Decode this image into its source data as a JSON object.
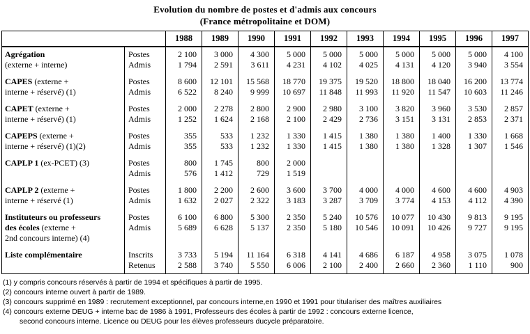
{
  "title": {
    "line1": "Evolution du nombre de postes et d'admis aux concours",
    "line2": "(France métropolitaine et DOM)"
  },
  "table": {
    "years": [
      "1988",
      "1989",
      "1990",
      "1991",
      "1992",
      "1993",
      "1994",
      "1995",
      "1996",
      "1997"
    ],
    "blocks": [
      {
        "label_lines": [
          [
            {
              "b": 1,
              "t": "Agrégation"
            }
          ],
          [
            {
              "b": 0,
              "t": "(externe + interne)"
            }
          ]
        ],
        "rows": [
          {
            "type": "Postes",
            "values": [
              "2 100",
              "3 000",
              "4 300",
              "5 000",
              "5 000",
              "5 000",
              "5 000",
              "5 000",
              "5 000",
              "4 100"
            ]
          },
          {
            "type": "Admis",
            "values": [
              "1 794",
              "2 591",
              "3 611",
              "4 231",
              "4 102",
              "4 025",
              "4 131",
              "4 120",
              "3 940",
              "3 554"
            ]
          }
        ]
      },
      {
        "label_lines": [
          [
            {
              "b": 1,
              "t": "CAPES"
            },
            {
              "b": 0,
              "t": " (externe +"
            }
          ],
          [
            {
              "b": 0,
              "t": "interne + réservé) (1)"
            }
          ]
        ],
        "rows": [
          {
            "type": "Postes",
            "values": [
              "8 600",
              "12 101",
              "15 568",
              "18 770",
              "19 375",
              "19 520",
              "18 800",
              "18 040",
              "16 200",
              "13 774"
            ]
          },
          {
            "type": "Admis",
            "values": [
              "6 522",
              "8 240",
              "9 999",
              "10 697",
              "11 848",
              "11 993",
              "11 920",
              "11 547",
              "10 603",
              "11 246"
            ]
          }
        ]
      },
      {
        "label_lines": [
          [
            {
              "b": 1,
              "t": "CAPET"
            },
            {
              "b": 0,
              "t": " (externe +"
            }
          ],
          [
            {
              "b": 0,
              "t": "interne + réservé) (1)"
            }
          ]
        ],
        "rows": [
          {
            "type": "Postes",
            "values": [
              "2 000",
              "2 278",
              "2 800",
              "2 900",
              "2 980",
              "3 100",
              "3 820",
              "3 960",
              "3 530",
              "2 857"
            ]
          },
          {
            "type": "Admis",
            "values": [
              "1 252",
              "1 624",
              "2 168",
              "2 100",
              "2 429",
              "2 736",
              "3 151",
              "3 131",
              "2 853",
              "2 371"
            ]
          }
        ]
      },
      {
        "label_lines": [
          [
            {
              "b": 1,
              "t": "CAPEPS"
            },
            {
              "b": 0,
              "t": " (externe +"
            }
          ],
          [
            {
              "b": 0,
              "t": "interne + réservé) (1)(2)"
            }
          ]
        ],
        "rows": [
          {
            "type": "Postes",
            "values": [
              "355",
              "533",
              "1 232",
              "1 330",
              "1 415",
              "1 380",
              "1 380",
              "1 400",
              "1 330",
              "1 668"
            ]
          },
          {
            "type": "Admis",
            "values": [
              "355",
              "533",
              "1 232",
              "1 330",
              "1 415",
              "1 380",
              "1 380",
              "1 328",
              "1 307",
              "1 546"
            ]
          }
        ]
      },
      {
        "label_lines": [
          [
            {
              "b": 1,
              "t": "CAPLP 1"
            },
            {
              "b": 0,
              "t": " (ex-PCET) (3)"
            }
          ]
        ],
        "rows": [
          {
            "type": "Postes",
            "values": [
              "800",
              "1 745",
              "800",
              "2 000",
              "",
              "",
              "",
              "",
              "",
              ""
            ]
          },
          {
            "type": "Admis",
            "values": [
              "576",
              "1 412",
              "729",
              "1 519",
              "",
              "",
              "",
              "",
              "",
              ""
            ]
          }
        ]
      },
      {
        "label_lines": [
          [
            {
              "b": 1,
              "t": "CAPLP 2"
            },
            {
              "b": 0,
              "t": " (externe +"
            }
          ],
          [
            {
              "b": 0,
              "t": "interne + réservé (1)"
            }
          ]
        ],
        "rows": [
          {
            "type": "Postes",
            "values": [
              "1 800",
              "2 200",
              "2 600",
              "3 600",
              "3 700",
              "4 000",
              "4 000",
              "4 600",
              "4 600",
              "4 903"
            ]
          },
          {
            "type": "Admis",
            "values": [
              "1 632",
              "2 027",
              "2 322",
              "3 183",
              "3 287",
              "3 709",
              "3 774",
              "4 153",
              "4 112",
              "4 390"
            ]
          }
        ]
      },
      {
        "spacer": true,
        "label_lines": [
          [
            {
              "b": 1,
              "t": "Instituteurs ou professeurs"
            }
          ],
          [
            {
              "b": 1,
              "t": "des écoles"
            },
            {
              "b": 0,
              "t": " (externe +"
            }
          ],
          [
            {
              "b": 0,
              "t": "2nd concours interne) (4)"
            }
          ]
        ],
        "rows": [
          {
            "type": "Postes",
            "values": [
              "6 100",
              "6 800",
              "5 300",
              "2 350",
              "5 240",
              "10 576",
              "10 077",
              "10 430",
              "9 813",
              "9 195"
            ]
          },
          {
            "type": "Admis",
            "values": [
              "5 689",
              "6 628",
              "5 137",
              "2 350",
              "5 180",
              "10 546",
              "10 091",
              "10 426",
              "9 727",
              "9 195"
            ]
          }
        ]
      },
      {
        "label_lines": [
          [
            {
              "b": 1,
              "t": "Liste complémentaire"
            }
          ]
        ],
        "rows": [
          {
            "type": "Inscrits",
            "values": [
              "3 733",
              "5 194",
              "11 164",
              "6 318",
              "4 141",
              "4 686",
              "6 187",
              "4 958",
              "3 075",
              "1 078"
            ]
          },
          {
            "type": "Retenus",
            "values": [
              "2 588",
              "3 740",
              "5 550",
              "6 006",
              "2 100",
              "2 400",
              "2 660",
              "2 360",
              "1 110",
              "900"
            ]
          }
        ]
      }
    ]
  },
  "footnotes": [
    "(1) y compris concours réservés à partir de 1994 et spécifiques à partir de 1995.",
    "(2) concours interne ouvert à partir de 1989.",
    "(3) concours supprimé en 1989 : recrutement exceptionnel, par concours interne,en 1990 et 1991 pour titulariser des maîtres auxiliaires",
    "(4) concours externe DEUG + interne bac de 1986 à 1991, Professeurs des écoles à partir de 1992 : concours externe licence,",
    "second concours interne. Licence ou DEUG pour les élèves professeurs ducycle préparatoire."
  ]
}
